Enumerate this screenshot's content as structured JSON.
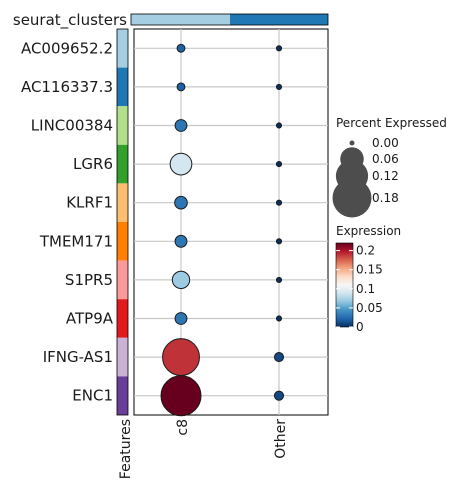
{
  "chart_data": {
    "type": "dotplot",
    "top_annotation": {
      "label": "seurat_clusters",
      "segments": [
        {
          "category": "c8",
          "color": "#a6cee3"
        },
        {
          "category": "Other",
          "color": "#1f78b4"
        }
      ]
    },
    "left_annotation_label": "Features",
    "columns": [
      "c8",
      "Other"
    ],
    "rows": [
      {
        "gene": "AC009652.2",
        "color": "#a6cee3",
        "pct": [
          0.004,
          0.001
        ],
        "expr": [
          0.02,
          0.0
        ]
      },
      {
        "gene": "AC116337.3",
        "color": "#1f78b4",
        "pct": [
          0.004,
          0.001
        ],
        "expr": [
          0.02,
          0.0
        ]
      },
      {
        "gene": "LINC00384",
        "color": "#b2df8a",
        "pct": [
          0.012,
          0.001
        ],
        "expr": [
          0.03,
          0.0
        ]
      },
      {
        "gene": "LGR6",
        "color": "#33a02c",
        "pct": [
          0.05,
          0.001
        ],
        "expr": [
          0.09,
          0.0
        ]
      },
      {
        "gene": "KLRF1",
        "color": "#fdbf6f",
        "pct": [
          0.014,
          0.001
        ],
        "expr": [
          0.03,
          0.0
        ]
      },
      {
        "gene": "TMEM171",
        "color": "#ff7f00",
        "pct": [
          0.012,
          0.001
        ],
        "expr": [
          0.03,
          0.0
        ]
      },
      {
        "gene": "S1PR5",
        "color": "#fb9a99",
        "pct": [
          0.03,
          0.001
        ],
        "expr": [
          0.07,
          0.0
        ]
      },
      {
        "gene": "ATP9A",
        "color": "#e31a1c",
        "pct": [
          0.012,
          0.001
        ],
        "expr": [
          0.03,
          0.0
        ]
      },
      {
        "gene": "IFNG-AS1",
        "color": "#cab2d6",
        "pct": [
          0.16,
          0.006
        ],
        "expr": [
          0.19,
          0.01
        ]
      },
      {
        "gene": "ENC1",
        "color": "#6a3d9a",
        "pct": [
          0.19,
          0.006
        ],
        "expr": [
          0.22,
          0.01
        ]
      }
    ],
    "size_legend": {
      "title": "Percent Expressed",
      "breaks": [
        0.0,
        0.06,
        0.12,
        0.18
      ],
      "labels": [
        "0.00",
        "0.06",
        "0.12",
        "0.18"
      ],
      "max_value": 0.19
    },
    "color_legend": {
      "title": "Expression",
      "range": [
        0,
        0.22
      ],
      "breaks": [
        0,
        0.05,
        0.1,
        0.15,
        0.2
      ],
      "labels": [
        "0",
        "0.05",
        "0.1",
        "0.15",
        "0.2"
      ],
      "palette": [
        "#053061",
        "#2166ac",
        "#4393c3",
        "#92c5de",
        "#d1e5f0",
        "#f7f7f7",
        "#fddbc7",
        "#f4a582",
        "#d6604d",
        "#b2182b",
        "#67001f"
      ]
    }
  }
}
